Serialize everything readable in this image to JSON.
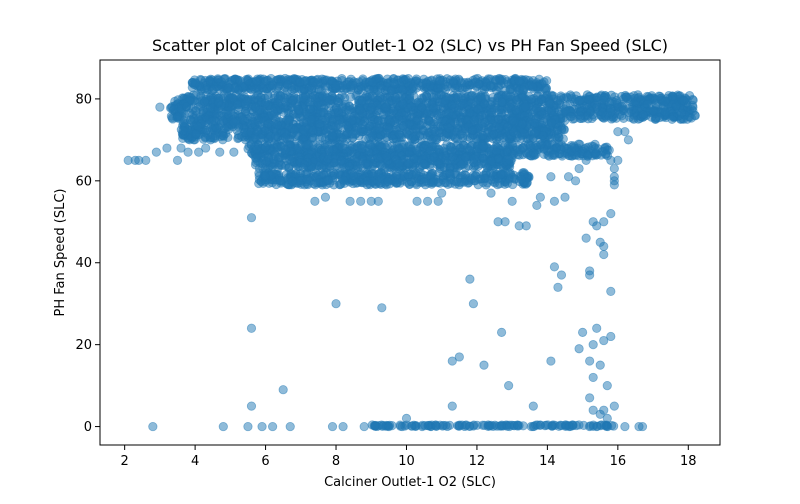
{
  "chart_data": {
    "type": "scatter",
    "title": "Scatter plot of Calciner Outlet-1 O2 (SLC) vs PH Fan Speed (SLC)",
    "xlabel": "Calciner Outlet-1 O2 (SLC)",
    "ylabel": "PH Fan Speed (SLC)",
    "xlim": [
      1.3,
      18.9
    ],
    "ylim": [
      -4.5,
      89.5
    ],
    "xticks": [
      2,
      4,
      6,
      8,
      10,
      12,
      14,
      16,
      18
    ],
    "yticks": [
      0,
      20,
      40,
      60,
      80
    ],
    "grid": false,
    "legend": "none",
    "marker_color": "#1f77b4",
    "marker_alpha": 0.5,
    "dense_bands": [
      {
        "x_range": [
          3.3,
          18.2
        ],
        "y_range": [
          75,
          81
        ]
      },
      {
        "x_range": [
          3.9,
          14.0
        ],
        "y_range": [
          82,
          85
        ]
      },
      {
        "x_range": [
          3.6,
          14.5
        ],
        "y_range": [
          70,
          75
        ]
      },
      {
        "x_range": [
          5.5,
          15.8
        ],
        "y_range": [
          66,
          69
        ]
      },
      {
        "x_range": [
          5.7,
          13.0
        ],
        "y_range": [
          63,
          66
        ]
      },
      {
        "x_range": [
          5.8,
          13.5
        ],
        "y_range": [
          59,
          62
        ]
      },
      {
        "x_range": [
          9.0,
          15.9
        ],
        "y_range": [
          0,
          0.4
        ]
      }
    ],
    "points": [
      {
        "x": 2.1,
        "y": 65
      },
      {
        "x": 2.3,
        "y": 65
      },
      {
        "x": 2.4,
        "y": 65
      },
      {
        "x": 2.6,
        "y": 65
      },
      {
        "x": 2.8,
        "y": 0
      },
      {
        "x": 2.9,
        "y": 67
      },
      {
        "x": 3.0,
        "y": 78
      },
      {
        "x": 3.2,
        "y": 68
      },
      {
        "x": 3.5,
        "y": 65
      },
      {
        "x": 3.6,
        "y": 68
      },
      {
        "x": 3.8,
        "y": 67
      },
      {
        "x": 4.1,
        "y": 67
      },
      {
        "x": 4.3,
        "y": 68
      },
      {
        "x": 4.7,
        "y": 67
      },
      {
        "x": 4.8,
        "y": 0
      },
      {
        "x": 5.1,
        "y": 67
      },
      {
        "x": 5.5,
        "y": 0
      },
      {
        "x": 5.6,
        "y": 5
      },
      {
        "x": 5.6,
        "y": 24
      },
      {
        "x": 5.6,
        "y": 51
      },
      {
        "x": 5.9,
        "y": 0
      },
      {
        "x": 6.2,
        "y": 0
      },
      {
        "x": 6.5,
        "y": 9
      },
      {
        "x": 6.7,
        "y": 0
      },
      {
        "x": 7.4,
        "y": 55
      },
      {
        "x": 7.7,
        "y": 56
      },
      {
        "x": 7.9,
        "y": 0
      },
      {
        "x": 8.0,
        "y": 30
      },
      {
        "x": 8.2,
        "y": 0
      },
      {
        "x": 8.4,
        "y": 55
      },
      {
        "x": 8.7,
        "y": 55
      },
      {
        "x": 8.8,
        "y": 0
      },
      {
        "x": 9.0,
        "y": 55
      },
      {
        "x": 9.2,
        "y": 55
      },
      {
        "x": 9.3,
        "y": 29
      },
      {
        "x": 9.5,
        "y": 0
      },
      {
        "x": 10.0,
        "y": 2
      },
      {
        "x": 10.3,
        "y": 55
      },
      {
        "x": 10.6,
        "y": 55
      },
      {
        "x": 10.9,
        "y": 55
      },
      {
        "x": 11.0,
        "y": 57
      },
      {
        "x": 11.3,
        "y": 16
      },
      {
        "x": 11.3,
        "y": 5
      },
      {
        "x": 11.5,
        "y": 17
      },
      {
        "x": 11.8,
        "y": 36
      },
      {
        "x": 11.9,
        "y": 30
      },
      {
        "x": 12.2,
        "y": 15
      },
      {
        "x": 12.4,
        "y": 57
      },
      {
        "x": 12.6,
        "y": 50
      },
      {
        "x": 12.7,
        "y": 23
      },
      {
        "x": 12.8,
        "y": 50
      },
      {
        "x": 12.9,
        "y": 10
      },
      {
        "x": 13.0,
        "y": 55
      },
      {
        "x": 13.2,
        "y": 49
      },
      {
        "x": 13.4,
        "y": 49
      },
      {
        "x": 13.6,
        "y": 5
      },
      {
        "x": 13.7,
        "y": 54
      },
      {
        "x": 13.8,
        "y": 56
      },
      {
        "x": 14.1,
        "y": 61
      },
      {
        "x": 14.1,
        "y": 16
      },
      {
        "x": 14.2,
        "y": 39
      },
      {
        "x": 14.3,
        "y": 34
      },
      {
        "x": 14.4,
        "y": 37
      },
      {
        "x": 14.2,
        "y": 55
      },
      {
        "x": 14.5,
        "y": 56
      },
      {
        "x": 14.6,
        "y": 61
      },
      {
        "x": 14.9,
        "y": 19
      },
      {
        "x": 15.0,
        "y": 23
      },
      {
        "x": 15.1,
        "y": 46
      },
      {
        "x": 15.2,
        "y": 38
      },
      {
        "x": 15.2,
        "y": 37
      },
      {
        "x": 15.2,
        "y": 16
      },
      {
        "x": 15.3,
        "y": 12
      },
      {
        "x": 15.2,
        "y": 7
      },
      {
        "x": 15.3,
        "y": 20
      },
      {
        "x": 15.4,
        "y": 24
      },
      {
        "x": 15.5,
        "y": 45
      },
      {
        "x": 15.5,
        "y": 15
      },
      {
        "x": 15.6,
        "y": 44
      },
      {
        "x": 15.6,
        "y": 42
      },
      {
        "x": 15.6,
        "y": 21
      },
      {
        "x": 15.7,
        "y": 10
      },
      {
        "x": 15.8,
        "y": 33
      },
      {
        "x": 15.8,
        "y": 22
      },
      {
        "x": 15.8,
        "y": 52
      },
      {
        "x": 15.9,
        "y": 60
      },
      {
        "x": 15.9,
        "y": 59
      },
      {
        "x": 15.3,
        "y": 50
      },
      {
        "x": 15.6,
        "y": 50
      },
      {
        "x": 15.4,
        "y": 49
      },
      {
        "x": 15.3,
        "y": 4
      },
      {
        "x": 15.5,
        "y": 3
      },
      {
        "x": 15.6,
        "y": 4
      },
      {
        "x": 15.9,
        "y": 5
      },
      {
        "x": 15.7,
        "y": 2
      },
      {
        "x": 16.0,
        "y": 65
      },
      {
        "x": 16.2,
        "y": 0
      },
      {
        "x": 16.3,
        "y": 70
      },
      {
        "x": 16.6,
        "y": 0
      },
      {
        "x": 16.7,
        "y": 0
      },
      {
        "x": 16.0,
        "y": 72
      },
      {
        "x": 16.2,
        "y": 72
      },
      {
        "x": 15.9,
        "y": 63
      },
      {
        "x": 15.9,
        "y": 61
      },
      {
        "x": 15.8,
        "y": 65
      },
      {
        "x": 15.1,
        "y": 65
      },
      {
        "x": 14.9,
        "y": 63
      },
      {
        "x": 14.8,
        "y": 60
      }
    ]
  }
}
